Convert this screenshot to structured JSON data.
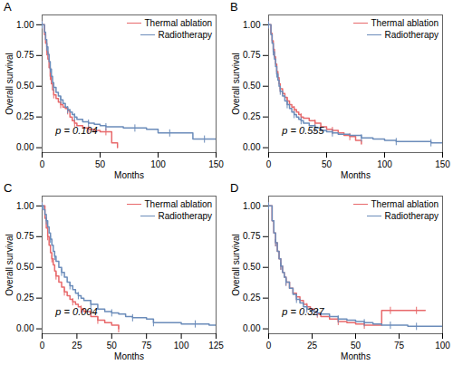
{
  "chart_data": [
    {
      "type": "step",
      "title": "A",
      "annotations": [
        "p = 0.104"
      ],
      "xlabel": "Months",
      "ylabel": "Overall survival",
      "xlim": [
        0,
        150
      ],
      "xticks": [
        0,
        50,
        100,
        150
      ],
      "ylim": [
        -0.04,
        1.08
      ],
      "yticks": [
        {
          "value": 0.0,
          "label": "0.00"
        },
        0.25,
        {
          "value": 0.5,
          "label": "0.50"
        },
        0.75,
        {
          "value": 1.0,
          "label": "1.00"
        }
      ],
      "grid": false,
      "legend": "upper right",
      "series": [
        {
          "name": "Thermal ablation",
          "color": "#e8696b",
          "marker": "|",
          "x": [
            0,
            2,
            3,
            4,
            5,
            6,
            7,
            8,
            9,
            10,
            12,
            14,
            16,
            18,
            20,
            22,
            24,
            26,
            28,
            30,
            35,
            40,
            45,
            50,
            55,
            60,
            65
          ],
          "values": [
            1.0,
            0.92,
            0.85,
            0.78,
            0.72,
            0.65,
            0.58,
            0.52,
            0.47,
            0.43,
            0.4,
            0.37,
            0.35,
            0.33,
            0.32,
            0.3,
            0.25,
            0.22,
            0.2,
            0.18,
            0.16,
            0.15,
            0.14,
            0.13,
            0.13,
            0.04,
            0.0
          ]
        },
        {
          "name": "Radiotherapy",
          "color": "#6b8cba",
          "marker": "|",
          "x": [
            0,
            2,
            3,
            4,
            5,
            6,
            7,
            8,
            9,
            10,
            12,
            14,
            16,
            18,
            20,
            22,
            24,
            26,
            28,
            30,
            35,
            40,
            45,
            50,
            55,
            60,
            70,
            80,
            90,
            100,
            110,
            120,
            130,
            140,
            150
          ],
          "values": [
            1.0,
            0.94,
            0.88,
            0.82,
            0.76,
            0.7,
            0.64,
            0.58,
            0.53,
            0.49,
            0.45,
            0.42,
            0.39,
            0.36,
            0.33,
            0.31,
            0.29,
            0.27,
            0.25,
            0.23,
            0.21,
            0.2,
            0.19,
            0.18,
            0.17,
            0.17,
            0.16,
            0.16,
            0.15,
            0.12,
            0.12,
            0.12,
            0.07,
            0.07,
            0.07
          ]
        }
      ]
    },
    {
      "type": "step",
      "title": "B",
      "annotations": [
        "p = 0.555"
      ],
      "xlabel": "Months",
      "ylabel": "Overall survival",
      "xlim": [
        0,
        150
      ],
      "xticks": [
        0,
        50,
        100,
        150
      ],
      "ylim": [
        -0.04,
        1.08
      ],
      "yticks": [
        {
          "value": 0.0,
          "label": "0.00"
        },
        0.25,
        {
          "value": 0.5,
          "label": "0.50"
        },
        0.75,
        {
          "value": 1.0,
          "label": "1.00"
        }
      ],
      "grid": false,
      "legend": "upper right",
      "series": [
        {
          "name": "Thermal ablation",
          "color": "#e8696b",
          "marker": "|",
          "x": [
            0,
            2,
            3,
            4,
            5,
            6,
            7,
            8,
            9,
            10,
            12,
            14,
            16,
            18,
            20,
            22,
            24,
            26,
            28,
            30,
            35,
            40,
            45,
            50,
            55,
            60,
            65,
            70,
            75,
            80
          ],
          "values": [
            1.0,
            0.93,
            0.87,
            0.8,
            0.74,
            0.68,
            0.62,
            0.57,
            0.52,
            0.48,
            0.44,
            0.41,
            0.38,
            0.35,
            0.33,
            0.31,
            0.29,
            0.27,
            0.25,
            0.24,
            0.22,
            0.2,
            0.17,
            0.15,
            0.14,
            0.12,
            0.1,
            0.09,
            0.06,
            0.03
          ]
        },
        {
          "name": "Radiotherapy",
          "color": "#6b8cba",
          "marker": "|",
          "x": [
            0,
            2,
            3,
            4,
            5,
            6,
            7,
            8,
            9,
            10,
            12,
            14,
            16,
            18,
            20,
            22,
            24,
            26,
            28,
            30,
            35,
            40,
            45,
            50,
            55,
            60,
            70,
            80,
            90,
            100,
            110,
            120,
            130,
            140,
            150
          ],
          "values": [
            1.0,
            0.92,
            0.85,
            0.78,
            0.72,
            0.66,
            0.6,
            0.55,
            0.5,
            0.46,
            0.42,
            0.38,
            0.35,
            0.32,
            0.29,
            0.27,
            0.25,
            0.23,
            0.22,
            0.2,
            0.18,
            0.16,
            0.14,
            0.13,
            0.12,
            0.11,
            0.1,
            0.08,
            0.07,
            0.06,
            0.05,
            0.05,
            0.05,
            0.04,
            0.04
          ]
        }
      ]
    },
    {
      "type": "step",
      "title": "C",
      "annotations": [
        "p = 0.004"
      ],
      "xlabel": "Months",
      "ylabel": "Overall survival",
      "xlim": [
        0,
        125
      ],
      "xticks": [
        0,
        25,
        50,
        75,
        100,
        125
      ],
      "ylim": [
        -0.04,
        1.08
      ],
      "yticks": [
        {
          "value": 0.0,
          "label": "0.00"
        },
        0.25,
        {
          "value": 0.5,
          "label": "0.50"
        },
        0.75,
        {
          "value": 1.0,
          "label": "1.00"
        }
      ],
      "grid": false,
      "legend": "upper right",
      "series": [
        {
          "name": "Thermal ablation",
          "color": "#e8696b",
          "marker": "|",
          "x": [
            0,
            2,
            3,
            4,
            5,
            6,
            7,
            8,
            9,
            10,
            12,
            14,
            16,
            18,
            20,
            22,
            24,
            26,
            28,
            30,
            35,
            40,
            45,
            50,
            55
          ],
          "values": [
            1.0,
            0.9,
            0.82,
            0.75,
            0.68,
            0.62,
            0.57,
            0.52,
            0.47,
            0.43,
            0.38,
            0.34,
            0.3,
            0.27,
            0.24,
            0.22,
            0.2,
            0.18,
            0.16,
            0.14,
            0.1,
            0.07,
            0.05,
            0.03,
            0.0
          ]
        },
        {
          "name": "Radiotherapy",
          "color": "#6b8cba",
          "marker": "|",
          "x": [
            0,
            1,
            2,
            3,
            4,
            5,
            6,
            7,
            8,
            9,
            10,
            12,
            14,
            16,
            18,
            20,
            22,
            24,
            26,
            28,
            30,
            35,
            40,
            45,
            50,
            55,
            60,
            65,
            70,
            75,
            80,
            90,
            100,
            110,
            120,
            125
          ],
          "values": [
            1.0,
            0.97,
            0.93,
            0.88,
            0.83,
            0.78,
            0.73,
            0.68,
            0.63,
            0.59,
            0.55,
            0.5,
            0.46,
            0.42,
            0.38,
            0.35,
            0.32,
            0.29,
            0.27,
            0.25,
            0.23,
            0.2,
            0.16,
            0.14,
            0.13,
            0.12,
            0.1,
            0.09,
            0.09,
            0.08,
            0.05,
            0.05,
            0.04,
            0.04,
            0.03,
            0.03
          ]
        }
      ]
    },
    {
      "type": "step",
      "title": "D",
      "annotations": [
        "p = 0.327"
      ],
      "xlabel": "Months",
      "ylabel": "Overall survival",
      "xlim": [
        0,
        100
      ],
      "xticks": [
        0,
        25,
        50,
        75,
        100
      ],
      "ylim": [
        -0.04,
        1.08
      ],
      "yticks": [
        {
          "value": 0.0,
          "label": "0.00"
        },
        0.25,
        {
          "value": 0.5,
          "label": "0.50"
        },
        0.75,
        {
          "value": 1.0,
          "label": "1.00"
        }
      ],
      "grid": false,
      "legend": "upper right",
      "series": [
        {
          "name": "Thermal ablation",
          "color": "#e8696b",
          "marker": "|",
          "x": [
            0,
            2,
            3,
            4,
            5,
            6,
            7,
            8,
            9,
            10,
            12,
            14,
            16,
            18,
            20,
            22,
            24,
            26,
            28,
            30,
            35,
            40,
            45,
            50,
            55,
            60,
            65,
            70,
            75,
            80,
            85,
            90
          ],
          "values": [
            1.0,
            0.88,
            0.78,
            0.7,
            0.63,
            0.57,
            0.51,
            0.46,
            0.42,
            0.38,
            0.33,
            0.29,
            0.26,
            0.23,
            0.2,
            0.18,
            0.16,
            0.14,
            0.12,
            0.1,
            0.08,
            0.06,
            0.05,
            0.04,
            0.03,
            0.03,
            0.15,
            0.15,
            0.15,
            0.15,
            0.15,
            0.15
          ]
        },
        {
          "name": "Radiotherapy",
          "color": "#6b8cba",
          "marker": "|",
          "x": [
            0,
            2,
            3,
            4,
            5,
            6,
            7,
            8,
            9,
            10,
            12,
            14,
            16,
            18,
            20,
            22,
            24,
            26,
            28,
            30,
            35,
            40,
            45,
            50,
            55,
            60,
            65,
            70,
            75,
            80,
            85,
            90,
            95,
            100
          ],
          "values": [
            1.0,
            0.88,
            0.78,
            0.7,
            0.63,
            0.57,
            0.51,
            0.46,
            0.42,
            0.38,
            0.33,
            0.28,
            0.24,
            0.21,
            0.18,
            0.16,
            0.15,
            0.14,
            0.13,
            0.12,
            0.1,
            0.08,
            0.07,
            0.06,
            0.05,
            0.04,
            0.03,
            0.03,
            0.03,
            0.02,
            0.02,
            0.02,
            0.02,
            0.02
          ]
        }
      ]
    }
  ]
}
